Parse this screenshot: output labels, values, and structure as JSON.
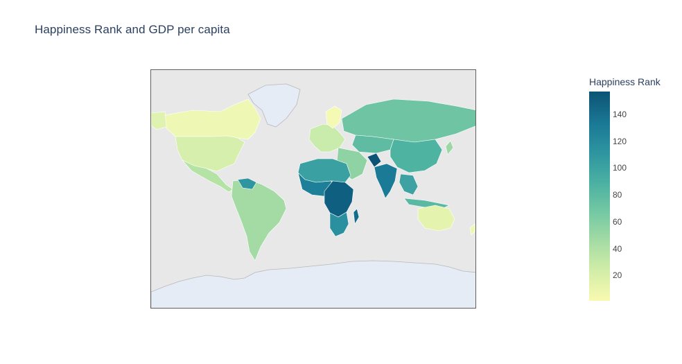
{
  "title": "Happiness Rank and GDP per capita",
  "colorbar": {
    "title": "Happiness Rank",
    "min": 1,
    "max": 157,
    "ticks": [
      20,
      40,
      60,
      80,
      100,
      120,
      140
    ],
    "colorscale": [
      "#f9f9b0",
      "#d3eea8",
      "#a6dca5",
      "#75c9a3",
      "#4cb1a2",
      "#2f96a0",
      "#1b7a96",
      "#0c5375"
    ]
  },
  "map": {
    "projection": "equirectangular",
    "ocean_color": "#e8e8e8",
    "land_color": "#e5ecf6",
    "border_color": "#b8b8b8"
  }
}
